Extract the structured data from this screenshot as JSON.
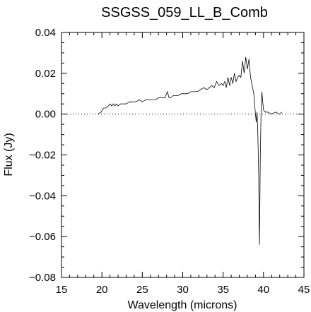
{
  "chart_data": {
    "type": "line",
    "title": "SSGSS_059_LL_B_Comb",
    "xlabel": "Wavelength (microns)",
    "ylabel": "Flux (Jy)",
    "xlim": [
      15,
      45
    ],
    "ylim": [
      -0.08,
      0.04
    ],
    "x_ticks": [
      15,
      20,
      25,
      30,
      35,
      40,
      45
    ],
    "x_tick_labels": [
      "15",
      "20",
      "25",
      "30",
      "35",
      "40",
      "45"
    ],
    "y_ticks": [
      -0.08,
      -0.06,
      -0.04,
      -0.02,
      0.0,
      0.02,
      0.04
    ],
    "y_tick_labels": [
      "−0.08",
      "−0.06",
      "−0.04",
      "−0.02",
      "0.00",
      "0.02",
      "0.04"
    ],
    "zero_line": "dotted",
    "grid": false,
    "series": [
      {
        "x": [
          19.5,
          19.9,
          20.2,
          20.5,
          20.8,
          21.0,
          21.2,
          21.4,
          21.6,
          21.8,
          22.0,
          22.3,
          22.6,
          23.0,
          23.4,
          23.8,
          24.2,
          24.6,
          25.0,
          25.4,
          25.8,
          26.2,
          26.6,
          27.0,
          27.4,
          27.8,
          28.1,
          28.3,
          28.5,
          28.8,
          29.1,
          29.4,
          29.8,
          30.2,
          30.6,
          31.0,
          31.4,
          31.8,
          32.2,
          32.6,
          33.0,
          33.3,
          33.6,
          33.9,
          34.2,
          34.5,
          34.8,
          35.0,
          35.2,
          35.4,
          35.6,
          35.8,
          36.0,
          36.2,
          36.4,
          36.6,
          36.8,
          37.0,
          37.2,
          37.4,
          37.6,
          37.8,
          38.0,
          38.2,
          38.4,
          38.6,
          38.8,
          39.0,
          39.1,
          39.2,
          39.3,
          39.4,
          39.5,
          39.6,
          39.7,
          39.8,
          39.9,
          40.0,
          40.2,
          40.5,
          41.0,
          41.5,
          42.0,
          42.3
        ],
        "y": [
          0.0,
          0.001,
          0.003,
          0.003,
          0.004,
          0.005,
          0.004,
          0.005,
          0.004,
          0.005,
          0.004,
          0.005,
          0.005,
          0.005,
          0.006,
          0.006,
          0.006,
          0.007,
          0.006,
          0.007,
          0.007,
          0.007,
          0.007,
          0.008,
          0.008,
          0.008,
          0.011,
          0.008,
          0.008,
          0.009,
          0.009,
          0.009,
          0.01,
          0.01,
          0.01,
          0.011,
          0.011,
          0.011,
          0.012,
          0.013,
          0.012,
          0.013,
          0.014,
          0.013,
          0.016,
          0.014,
          0.015,
          0.014,
          0.016,
          0.013,
          0.018,
          0.014,
          0.018,
          0.015,
          0.02,
          0.016,
          0.018,
          0.019,
          0.018,
          0.026,
          0.02,
          0.028,
          0.022,
          0.027,
          0.018,
          0.014,
          0.01,
          0.0,
          -0.004,
          0.001,
          -0.01,
          -0.03,
          -0.064,
          -0.02,
          0.002,
          0.011,
          0.006,
          0.002,
          0.001,
          0.001,
          0.0,
          0.001,
          0.0,
          0.001
        ]
      }
    ]
  }
}
